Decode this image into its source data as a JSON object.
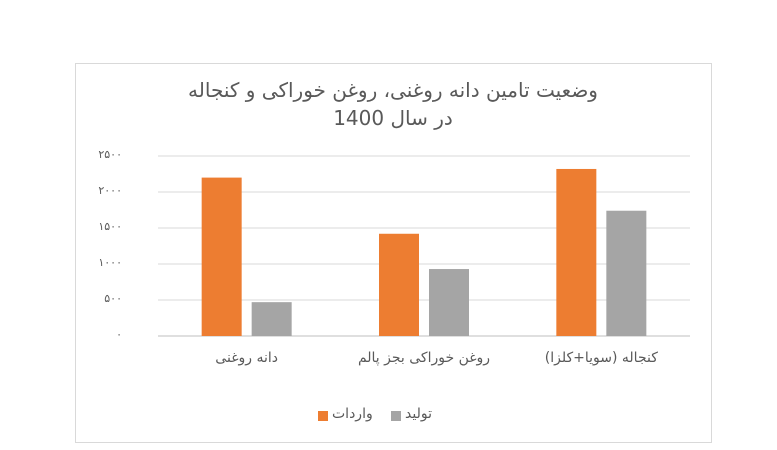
{
  "chart_data": {
    "type": "bar",
    "title": "وضعیت تامین دانه روغنی، روغن خوراکی و کنجاله در سال 1400",
    "categories": [
      "دانه روغنی",
      "روغن خوراکی بجز پالم",
      "کنجاله (سویا+کلزا)"
    ],
    "series": [
      {
        "name": "واردات",
        "color": "#ed7d31",
        "values": [
          2200,
          1420,
          2320
        ]
      },
      {
        "name": "تولید",
        "color": "#a5a5a5",
        "values": [
          470,
          930,
          1740
        ]
      }
    ],
    "ylim": [
      0,
      2500
    ],
    "yticks": [
      {
        "value": 0,
        "label": "۰"
      },
      {
        "value": 500,
        "label": "۵۰۰"
      },
      {
        "value": 1000,
        "label": "۱۰۰۰"
      },
      {
        "value": 1500,
        "label": "۱۵۰۰"
      },
      {
        "value": 2000,
        "label": "۲۰۰۰"
      },
      {
        "value": 2500,
        "label": "۲۵۰۰"
      }
    ],
    "grid": true,
    "legend": "bottom"
  }
}
